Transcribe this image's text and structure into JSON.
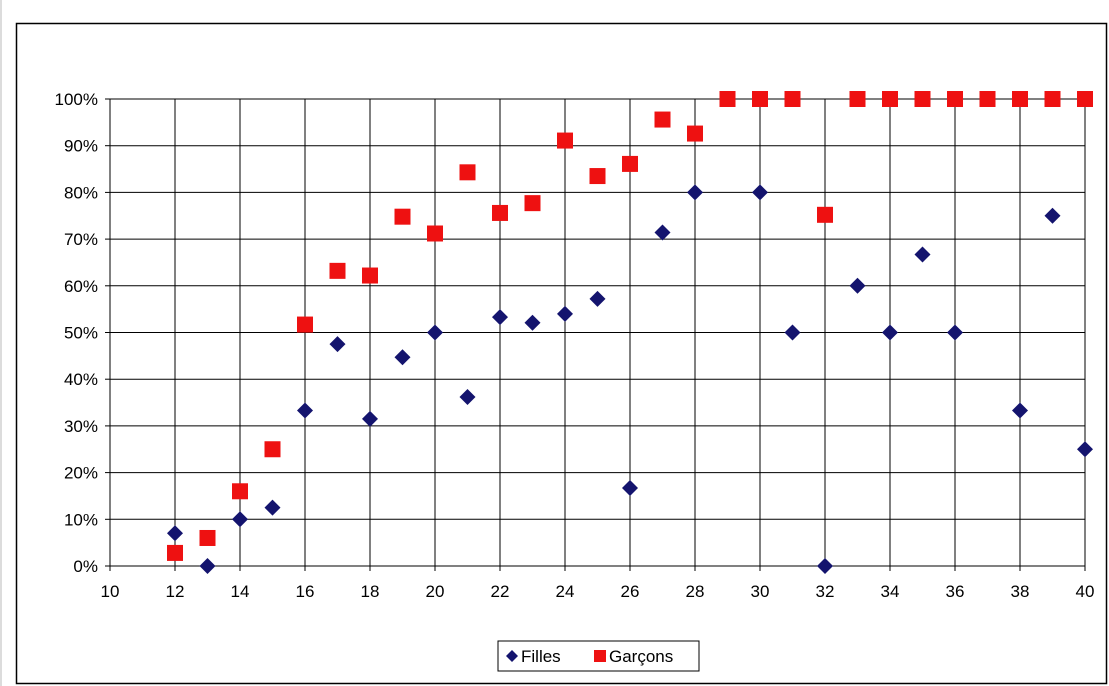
{
  "chart_data": {
    "type": "scatter",
    "xlim": [
      10,
      40
    ],
    "ylim": [
      0,
      100
    ],
    "x_ticks": [
      "10",
      "12",
      "14",
      "16",
      "18",
      "20",
      "22",
      "24",
      "26",
      "28",
      "30",
      "32",
      "34",
      "36",
      "38",
      "40"
    ],
    "y_ticks": [
      "0%",
      "10%",
      "20%",
      "30%",
      "40%",
      "50%",
      "60%",
      "70%",
      "80%",
      "90%",
      "100%"
    ],
    "grid": true,
    "legend_position": "bottom",
    "series": [
      {
        "name": "Filles",
        "color": "#14146e",
        "marker": "diamond",
        "points": [
          [
            12,
            7
          ],
          [
            13,
            0
          ],
          [
            14,
            10
          ],
          [
            15,
            12.5
          ],
          [
            16,
            33.3
          ],
          [
            17,
            47.5
          ],
          [
            18,
            31.5
          ],
          [
            19,
            44.7
          ],
          [
            20,
            50
          ],
          [
            21,
            36.2
          ],
          [
            22,
            53.3
          ],
          [
            23,
            52.1
          ],
          [
            24,
            54
          ],
          [
            25,
            57.2
          ],
          [
            26,
            16.7
          ],
          [
            27,
            71.4
          ],
          [
            28,
            80
          ],
          [
            30,
            80
          ],
          [
            31,
            50
          ],
          [
            32,
            0
          ],
          [
            33,
            60
          ],
          [
            34,
            50
          ],
          [
            35,
            66.7
          ],
          [
            36,
            50
          ],
          [
            38,
            33.3
          ],
          [
            39,
            75
          ],
          [
            40,
            25
          ]
        ]
      },
      {
        "name": "Garçons",
        "color": "#ee1111",
        "marker": "square",
        "points": [
          [
            12,
            2.8
          ],
          [
            13,
            6
          ],
          [
            14,
            16
          ],
          [
            15,
            25
          ],
          [
            16,
            51.7
          ],
          [
            17,
            63.2
          ],
          [
            18,
            62.2
          ],
          [
            19,
            74.8
          ],
          [
            20,
            71.2
          ],
          [
            21,
            84.3
          ],
          [
            22,
            75.6
          ],
          [
            23,
            77.7
          ],
          [
            24,
            91.1
          ],
          [
            25,
            83.5
          ],
          [
            26,
            86.1
          ],
          [
            27,
            95.6
          ],
          [
            28,
            92.6
          ],
          [
            29,
            100
          ],
          [
            30,
            100
          ],
          [
            31,
            100
          ],
          [
            32,
            75.2
          ],
          [
            33,
            100
          ],
          [
            34,
            100
          ],
          [
            35,
            100
          ],
          [
            36,
            100
          ],
          [
            37,
            100
          ],
          [
            38,
            100
          ],
          [
            39,
            100
          ],
          [
            40,
            100
          ]
        ]
      }
    ]
  }
}
